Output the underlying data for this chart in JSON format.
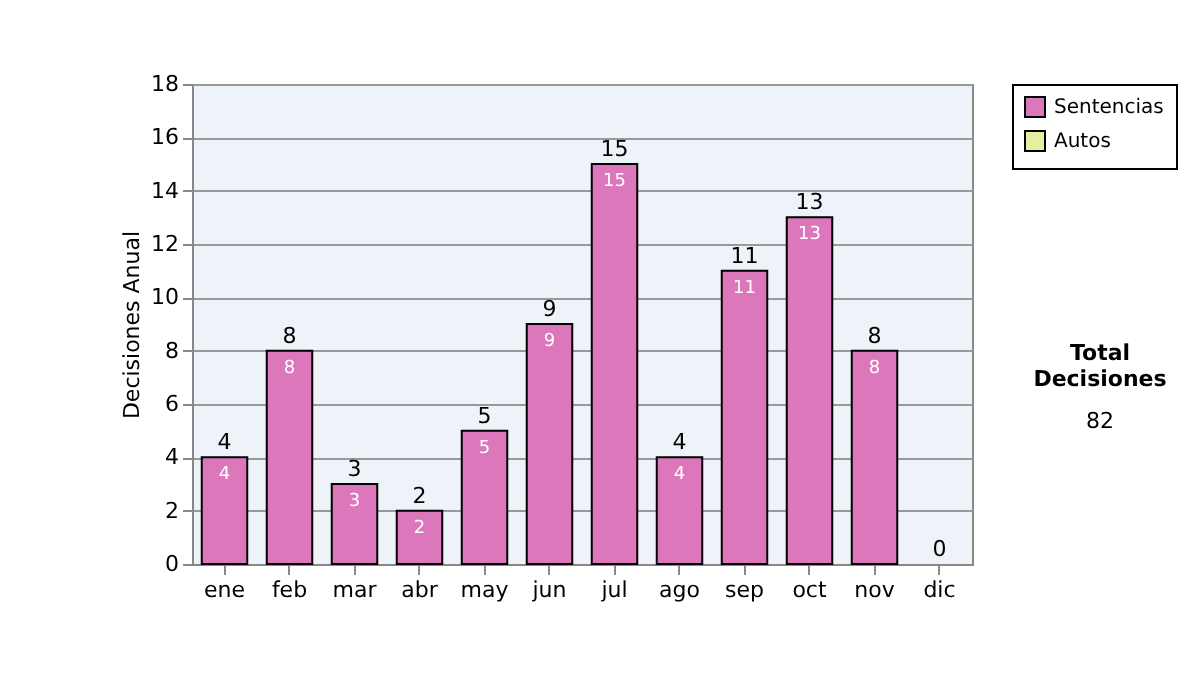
{
  "chart_data": {
    "type": "bar",
    "ylabel": "Decisiones Anual",
    "categories": [
      "ene",
      "feb",
      "mar",
      "abr",
      "may",
      "jun",
      "jul",
      "ago",
      "sep",
      "oct",
      "nov",
      "dic"
    ],
    "series": [
      {
        "name": "Sentencias",
        "color": "#dd77bb",
        "values": [
          4,
          8,
          3,
          2,
          5,
          9,
          15,
          4,
          11,
          13,
          8,
          0
        ],
        "value_labels": [
          "4",
          "8",
          "3",
          "2",
          "5",
          "9",
          "15",
          "4",
          "11",
          "13",
          "8",
          null
        ]
      },
      {
        "name": "Autos",
        "color": "#e6eea0",
        "values": [
          0,
          0,
          0,
          0,
          0,
          0,
          0,
          0,
          0,
          0,
          0,
          0
        ]
      }
    ],
    "stacked": true,
    "totals": [
      "4",
      "8",
      "3",
      "2",
      "5",
      "9",
      "15",
      "4",
      "11",
      "13",
      "8",
      "0"
    ],
    "ylim": [
      0,
      18
    ],
    "yticks": [
      0,
      2,
      4,
      6,
      8,
      10,
      12,
      14,
      16,
      18
    ],
    "grid": "y",
    "legend": "right",
    "annotations": [
      "Total Decisiones",
      "82"
    ]
  }
}
